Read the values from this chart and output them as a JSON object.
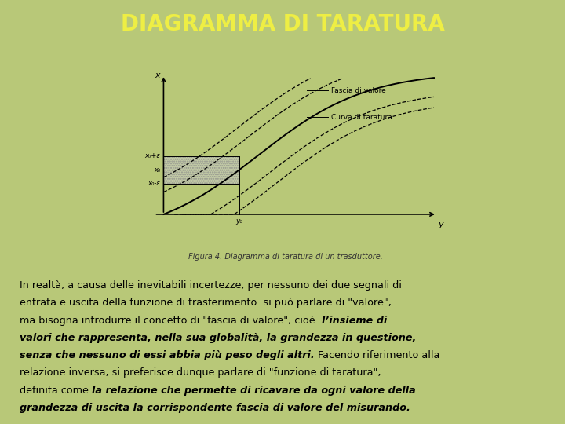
{
  "title": "DIAGRAMMA DI TARATURA",
  "title_color": "#EEEE44",
  "title_bg_color": "#1a3a0a",
  "title_fontsize": 20,
  "fig_bg": "#b8c878",
  "panel_bg": "#ffffff",
  "caption": "Figura 4. Diagramma di taratura di un trasduttore.",
  "label_fascia": "Fascia di valore",
  "label_curva": "Curva di taratura",
  "label_x": "x",
  "label_y": "y",
  "label_y0": "y₀",
  "label_x0": "x₀",
  "label_x0_plus": "x₀+ε",
  "label_x0_minus": "x₀-ε",
  "lines": [
    {
      "parts": [
        [
          "In realtà, a causa delle inevitabili incertezze, per nessuno dei due segnali di",
          false
        ]
      ]
    },
    {
      "parts": [
        [
          "entrata e uscita della funzione di trasferimento  si può parlare di \"valore\",",
          false
        ]
      ]
    },
    {
      "parts": [
        [
          "ma bisogna introdurre il concetto di \"fascia di valore\", cioè  ",
          false
        ],
        [
          "l’insieme di",
          true
        ]
      ]
    },
    {
      "parts": [
        [
          "valori che rappresenta, nella sua globalità, la grandezza in questione,",
          true
        ]
      ]
    },
    {
      "parts": [
        [
          "senza che nessuno di essi abbia più peso degli altri.",
          true
        ],
        [
          " Facendo riferimento alla",
          false
        ]
      ]
    },
    {
      "parts": [
        [
          "relazione inversa, si preferisce dunque parlare di \"funzione di taratura\",",
          false
        ]
      ]
    },
    {
      "parts": [
        [
          "definita come ",
          false
        ],
        [
          "la relazione che permette di ricavare da ogni valore della",
          true
        ]
      ]
    },
    {
      "parts": [
        [
          "grandezza di uscita la corrispondente fascia di valore del misurando.",
          true
        ]
      ]
    }
  ]
}
